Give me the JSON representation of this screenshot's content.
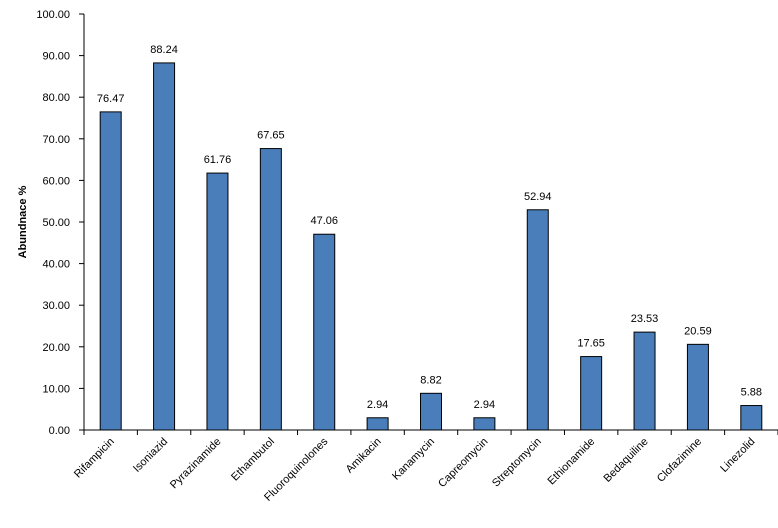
{
  "chart_data": {
    "type": "bar",
    "title": "",
    "xlabel": "",
    "ylabel": "Abundnace %",
    "categories": [
      "Rifampicin",
      "Isoniazid",
      "Pyrazinamide",
      "Ethambutol",
      "Fluoroquinolones",
      "Amikacin",
      "Kanamycin",
      "Capreomycin",
      "Streptomycin",
      "Ethionamide",
      "Bedaquiline",
      "Clofazimine",
      "Linezolid"
    ],
    "values": [
      76.47,
      88.24,
      61.76,
      67.65,
      47.06,
      2.94,
      8.82,
      2.94,
      52.94,
      17.65,
      23.53,
      20.59,
      5.88
    ],
    "value_labels": [
      "76.47",
      "88.24",
      "61.76",
      "67.65",
      "47.06",
      "2.94",
      "8.82",
      "2.94",
      "52.94",
      "17.65",
      "23.53",
      "20.59",
      "5.88"
    ],
    "ylim": [
      0,
      100
    ],
    "yticks": [
      "0.00",
      "10.00",
      "20.00",
      "30.00",
      "40.00",
      "50.00",
      "60.00",
      "70.00",
      "80.00",
      "90.00",
      "100.00"
    ],
    "grid": false,
    "legend": "none",
    "bar_color": "#4a7ebb",
    "bar_edge_color": "#000000"
  }
}
